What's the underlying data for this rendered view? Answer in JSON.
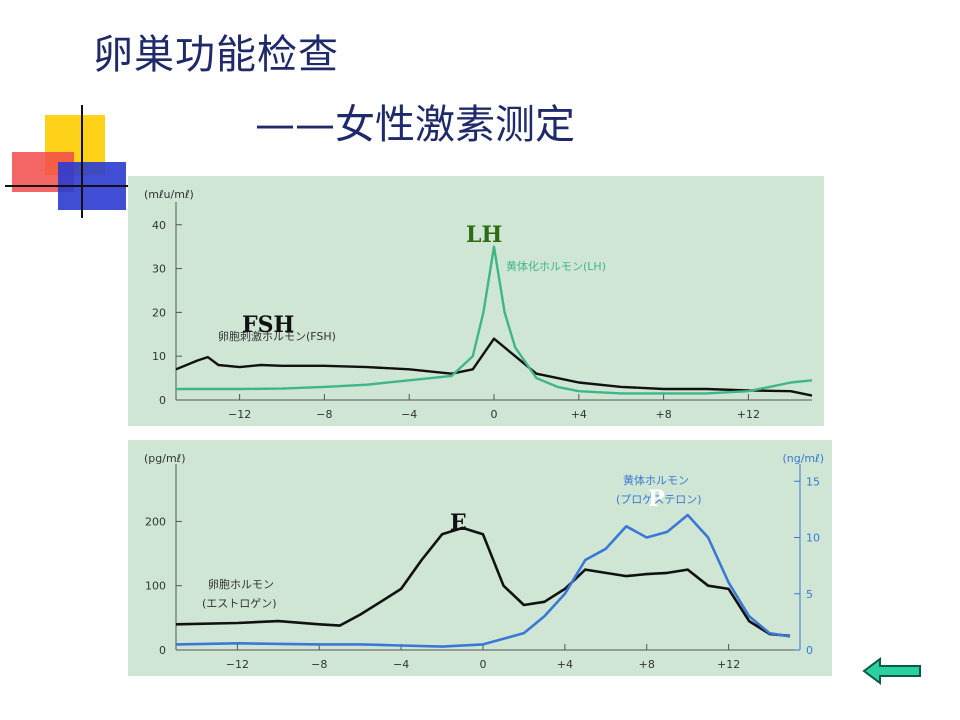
{
  "slide": {
    "title_line1": "卵巣功能检查",
    "title_line2": "——女性激素测定"
  },
  "colors": {
    "title": "#1f2a6b",
    "panel_bg": "#cfe6d4",
    "black_line": "#111111",
    "green_line": "#3fb58a",
    "blue_line": "#3a78d6",
    "lh_label": "#2e6b12",
    "deco_yellow": "#ffd21a",
    "deco_red": "#f24a4a",
    "deco_blue": "#2a3bd0"
  },
  "chart_data": [
    {
      "type": "line",
      "y_unit": "(mℓu/mℓ)",
      "x_ticks": [
        -12,
        -8,
        -4,
        0,
        4,
        8,
        12
      ],
      "x_tick_labels": [
        "−12",
        "−8",
        "−4",
        "0",
        "+4",
        "+8",
        "+12"
      ],
      "xlim": [
        -15,
        15
      ],
      "y_ticks": [
        0,
        10,
        20,
        30,
        40
      ],
      "ylim": [
        0,
        42
      ],
      "series": [
        {
          "name": "FSH",
          "label": "卵胞刺激ホルモン(FSH)",
          "color": "#111111",
          "points": [
            [
              -15,
              7
            ],
            [
              -14,
              9
            ],
            [
              -13.5,
              9.8
            ],
            [
              -13,
              8
            ],
            [
              -12,
              7.5
            ],
            [
              -11,
              8
            ],
            [
              -10,
              7.8
            ],
            [
              -8,
              7.8
            ],
            [
              -6,
              7.5
            ],
            [
              -4,
              7
            ],
            [
              -2,
              6
            ],
            [
              -1,
              7
            ],
            [
              0,
              14
            ],
            [
              1,
              10
            ],
            [
              2,
              6
            ],
            [
              3,
              5
            ],
            [
              4,
              4
            ],
            [
              6,
              3
            ],
            [
              8,
              2.5
            ],
            [
              10,
              2.5
            ],
            [
              12,
              2.2
            ],
            [
              14,
              2
            ],
            [
              15,
              1
            ]
          ]
        },
        {
          "name": "LH",
          "label": "黄体化ホルモン(LH)",
          "color": "#3fb58a",
          "points": [
            [
              -15,
              2.5
            ],
            [
              -12,
              2.5
            ],
            [
              -10,
              2.6
            ],
            [
              -8,
              3
            ],
            [
              -6,
              3.5
            ],
            [
              -4,
              4.5
            ],
            [
              -2,
              5.5
            ],
            [
              -1,
              10
            ],
            [
              -0.5,
              20
            ],
            [
              0,
              35
            ],
            [
              0.5,
              20
            ],
            [
              1,
              12
            ],
            [
              2,
              5
            ],
            [
              3,
              3
            ],
            [
              4,
              2
            ],
            [
              6,
              1.5
            ],
            [
              8,
              1.5
            ],
            [
              10,
              1.5
            ],
            [
              12,
              2
            ],
            [
              13,
              3
            ],
            [
              14,
              4
            ],
            [
              15,
              4.5
            ]
          ]
        }
      ],
      "labels": {
        "fsh_tag": "FSH",
        "lh_tag": "LH"
      }
    },
    {
      "type": "line",
      "y_unit_left": "(pg/mℓ)",
      "y_unit_right": "(ng/mℓ)",
      "x_ticks": [
        -12,
        -8,
        -4,
        0,
        4,
        8,
        12
      ],
      "x_tick_labels": [
        "−12",
        "−8",
        "−4",
        "0",
        "+4",
        "+8",
        "+12"
      ],
      "xlim": [
        -15,
        15
      ],
      "y_ticks_left": [
        0,
        100,
        200
      ],
      "ylim_left": [
        0,
        280
      ],
      "y_ticks_right": [
        0,
        5,
        10,
        15
      ],
      "ylim_right": [
        0,
        16
      ],
      "series": [
        {
          "name": "E",
          "label_line1": "卵胞ホルモン",
          "label_line2": "(エストロゲン)",
          "axis": "left",
          "color": "#111111",
          "points": [
            [
              -15,
              40
            ],
            [
              -12,
              42
            ],
            [
              -10,
              45
            ],
            [
              -8,
              40
            ],
            [
              -7,
              38
            ],
            [
              -6,
              55
            ],
            [
              -5,
              75
            ],
            [
              -4,
              95
            ],
            [
              -3,
              140
            ],
            [
              -2,
              180
            ],
            [
              -1,
              190
            ],
            [
              0,
              180
            ],
            [
              1,
              100
            ],
            [
              2,
              70
            ],
            [
              3,
              75
            ],
            [
              4,
              95
            ],
            [
              5,
              125
            ],
            [
              6,
              120
            ],
            [
              7,
              115
            ],
            [
              8,
              118
            ],
            [
              9,
              120
            ],
            [
              10,
              125
            ],
            [
              11,
              100
            ],
            [
              12,
              95
            ],
            [
              13,
              45
            ],
            [
              14,
              25
            ],
            [
              15,
              22
            ]
          ]
        },
        {
          "name": "P",
          "label_line1": "黄体ホルモン",
          "label_line2": "(プロゲステロン)",
          "axis": "right",
          "color": "#3a78d6",
          "points": [
            [
              -15,
              0.5
            ],
            [
              -12,
              0.6
            ],
            [
              -8,
              0.5
            ],
            [
              -6,
              0.5
            ],
            [
              -4,
              0.4
            ],
            [
              -2,
              0.3
            ],
            [
              0,
              0.5
            ],
            [
              1,
              1
            ],
            [
              2,
              1.5
            ],
            [
              3,
              3
            ],
            [
              4,
              5
            ],
            [
              5,
              8
            ],
            [
              6,
              9
            ],
            [
              7,
              11
            ],
            [
              8,
              10
            ],
            [
              9,
              10.5
            ],
            [
              10,
              12
            ],
            [
              11,
              10
            ],
            [
              12,
              6
            ],
            [
              13,
              3
            ],
            [
              14,
              1.5
            ],
            [
              15,
              1.2
            ]
          ]
        }
      ],
      "labels": {
        "e_tag": "E",
        "p_tag": "P"
      }
    }
  ]
}
